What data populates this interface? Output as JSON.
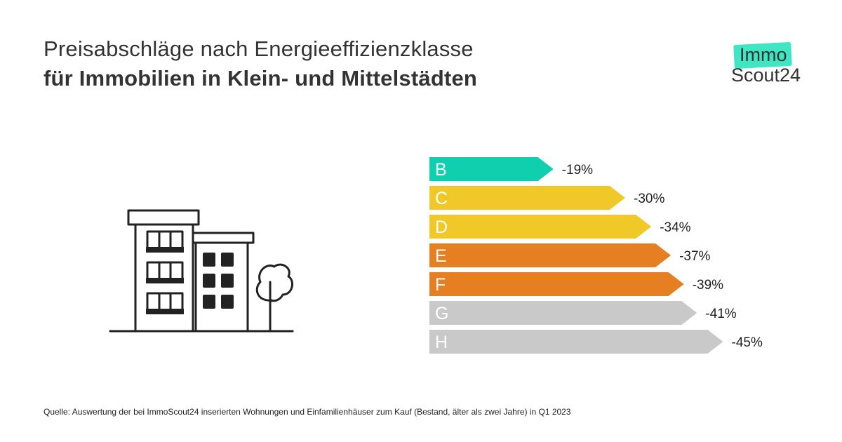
{
  "header": {
    "title_line1": "Preisabschläge nach Energieeffizienzklasse",
    "title_line2": "für Immobilien in Klein- und Mittelstädten"
  },
  "logo": {
    "top": "Immo",
    "bottom": "Scout24",
    "accent_color": "#3ee6c4"
  },
  "illustration": {
    "icon": "apartment-building-with-tree-icon"
  },
  "chart_data": {
    "type": "bar",
    "orientation": "horizontal",
    "categories": [
      "B",
      "C",
      "D",
      "E",
      "F",
      "G",
      "H"
    ],
    "values": [
      -19,
      -30,
      -34,
      -37,
      -39,
      -41,
      -45
    ],
    "value_labels": [
      "-19%",
      "-30%",
      "-34%",
      "-37%",
      "-39%",
      "-41%",
      "-45%"
    ],
    "unit": "%",
    "colors": [
      "#10cfae",
      "#f0c828",
      "#f0c828",
      "#e67f22",
      "#e67f22",
      "#c9c9c9",
      "#c9c9c9"
    ],
    "bar_shape": "arrow",
    "grid": false,
    "axes_visible": false
  },
  "footer": {
    "source": "Quelle: Auswertung der bei ImmoScout24 inserierten Wohnungen und Einfamilienhäuser zum Kauf  (Bestand, älter als zwei Jahre)  in Q1 2023"
  }
}
